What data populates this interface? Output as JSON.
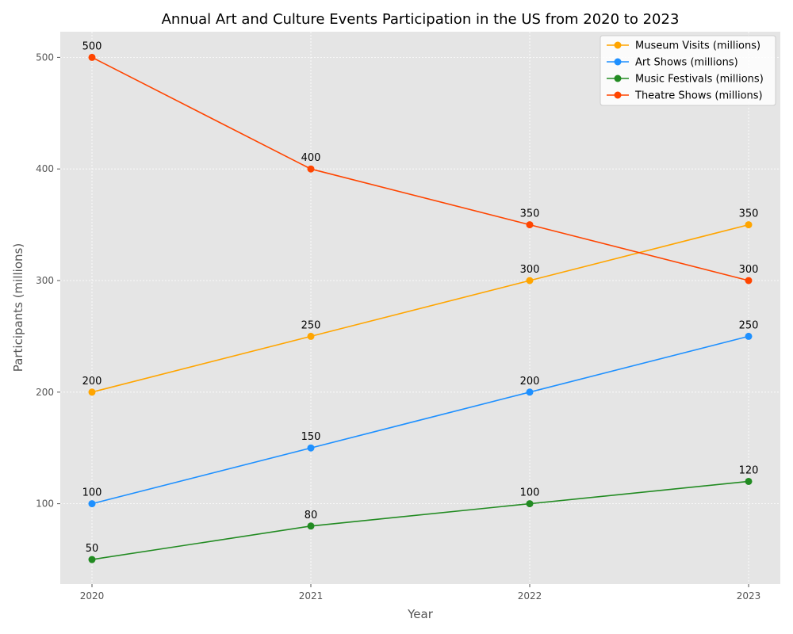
{
  "chart_data": {
    "type": "line",
    "title": "Annual Art and Culture Events Participation in the US from 2020 to 2023",
    "xlabel": "Year",
    "ylabel": "Participants (millions)",
    "categories": [
      "2020",
      "2021",
      "2022",
      "2023"
    ],
    "y_ticks": [
      100,
      200,
      300,
      400,
      500
    ],
    "ylim": [
      28,
      523
    ],
    "grid": true,
    "legend_position": "top-right",
    "series": [
      {
        "name": "Museum Visits (millions)",
        "color": "#FFA500",
        "values": [
          200,
          250,
          300,
          350
        ]
      },
      {
        "name": "Art Shows (millions)",
        "color": "#1E90FF",
        "values": [
          100,
          150,
          200,
          250
        ]
      },
      {
        "name": "Music Festivals (millions)",
        "color": "#228B22",
        "values": [
          50,
          80,
          100,
          120
        ]
      },
      {
        "name": "Theatre Shows (millions)",
        "color": "#FF4500",
        "values": [
          500,
          400,
          350,
          300
        ]
      }
    ]
  }
}
